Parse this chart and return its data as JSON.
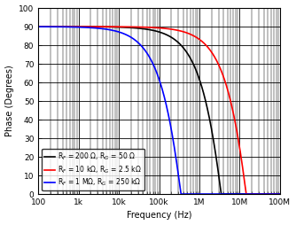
{
  "xlabel": "Frequency (Hz)",
  "ylabel": "Phase (Degrees)",
  "xlim": [
    100,
    100000000.0
  ],
  "ylim": [
    0,
    100
  ],
  "yticks": [
    0,
    10,
    20,
    30,
    40,
    50,
    60,
    70,
    80,
    90,
    100
  ],
  "background_color": "#ffffff",
  "curves": [
    {
      "label": "R_F = 200 Ω, R_G = 50 Ω",
      "color": "#000000",
      "f0": 6000000.0,
      "n_poles": 3
    },
    {
      "label": "R_F = 10 kΩ, R_G = 2.5 kΩ",
      "color": "#ff0000",
      "f0": 25000000.0,
      "n_poles": 3
    },
    {
      "label": "R_F = 1 MΩ, R_G = 250 kΩ",
      "color": "#0000ff",
      "f0": 600000.0,
      "n_poles": 3
    }
  ],
  "legend_loc": "lower left",
  "fontsize": 7,
  "tick_fontsize": 6.5,
  "linewidth": 1.2,
  "legend_fontsize": 5.5
}
